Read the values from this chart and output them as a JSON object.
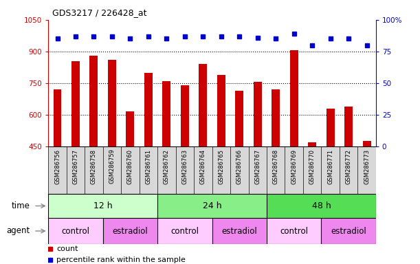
{
  "title": "GDS3217 / 226428_at",
  "samples": [
    "GSM286756",
    "GSM286757",
    "GSM286758",
    "GSM286759",
    "GSM286760",
    "GSM286761",
    "GSM286762",
    "GSM286763",
    "GSM286764",
    "GSM286765",
    "GSM286766",
    "GSM286767",
    "GSM286768",
    "GSM286769",
    "GSM286770",
    "GSM286771",
    "GSM286772",
    "GSM286773"
  ],
  "counts": [
    720,
    855,
    880,
    860,
    615,
    800,
    760,
    740,
    840,
    790,
    715,
    755,
    720,
    905,
    470,
    630,
    640,
    475
  ],
  "percentiles": [
    85,
    87,
    87,
    87,
    85,
    87,
    85,
    87,
    87,
    87,
    87,
    86,
    85,
    89,
    80,
    85,
    85,
    80
  ],
  "bar_color": "#cc0000",
  "dot_color": "#0000cc",
  "ylim_left": [
    450,
    1050
  ],
  "ylim_right": [
    0,
    100
  ],
  "yticks_left": [
    450,
    600,
    750,
    900,
    1050
  ],
  "yticks_right": [
    0,
    25,
    50,
    75,
    100
  ],
  "ytick_right_labels": [
    "0",
    "25",
    "50",
    "75",
    "100%"
  ],
  "grid_values": [
    600,
    750,
    900
  ],
  "time_groups": [
    {
      "label": "12 h",
      "start": 0,
      "end": 6,
      "color": "#ccffcc"
    },
    {
      "label": "24 h",
      "start": 6,
      "end": 12,
      "color": "#88ee88"
    },
    {
      "label": "48 h",
      "start": 12,
      "end": 18,
      "color": "#55dd55"
    }
  ],
  "agent_groups": [
    {
      "label": "control",
      "start": 0,
      "end": 3,
      "color": "#ffccff"
    },
    {
      "label": "estradiol",
      "start": 3,
      "end": 6,
      "color": "#ee88ee"
    },
    {
      "label": "control",
      "start": 6,
      "end": 9,
      "color": "#ffccff"
    },
    {
      "label": "estradiol",
      "start": 9,
      "end": 12,
      "color": "#ee88ee"
    },
    {
      "label": "control",
      "start": 12,
      "end": 15,
      "color": "#ffccff"
    },
    {
      "label": "estradiol",
      "start": 15,
      "end": 18,
      "color": "#ee88ee"
    }
  ],
  "legend_count_color": "#cc0000",
  "legend_dot_color": "#0000cc",
  "time_label": "time",
  "agent_label": "agent",
  "right_axis_color": "#0000cc",
  "left_axis_color": "#cc0000",
  "ticklabel_bg": "#d8d8d8",
  "fig_width": 6.11,
  "fig_height": 3.84,
  "dpi": 100
}
